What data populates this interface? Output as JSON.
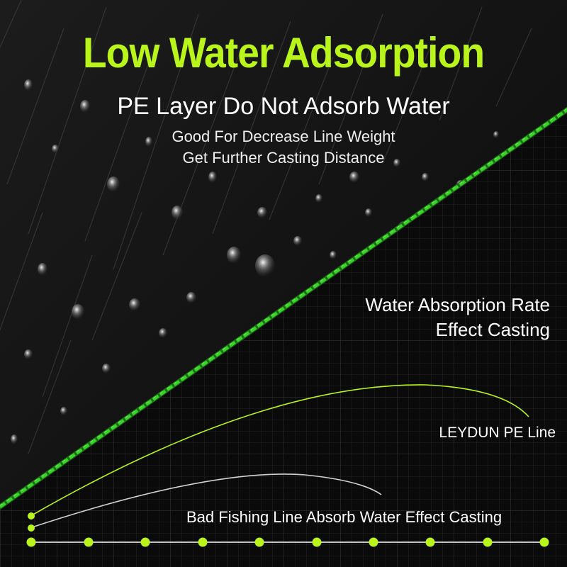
{
  "headline": "Low Water Adsorption",
  "subhead": "PE Layer Do Not Adsorb Water",
  "benefits": [
    "Good For Decrease Line Weight",
    "Get Further Casting Distance"
  ],
  "absorption_label": [
    "Water Absorption Rate",
    "Effect Casting"
  ],
  "curves": {
    "leydun_label": "LEYDUN PE Line",
    "bad_label": "Bad Fishing Line Absorb Water Effect Casting"
  },
  "colors": {
    "accent": "#b9f51a",
    "line_green": "#39d42a",
    "bad_curve": "#cfd3d6",
    "background": "#060606"
  }
}
